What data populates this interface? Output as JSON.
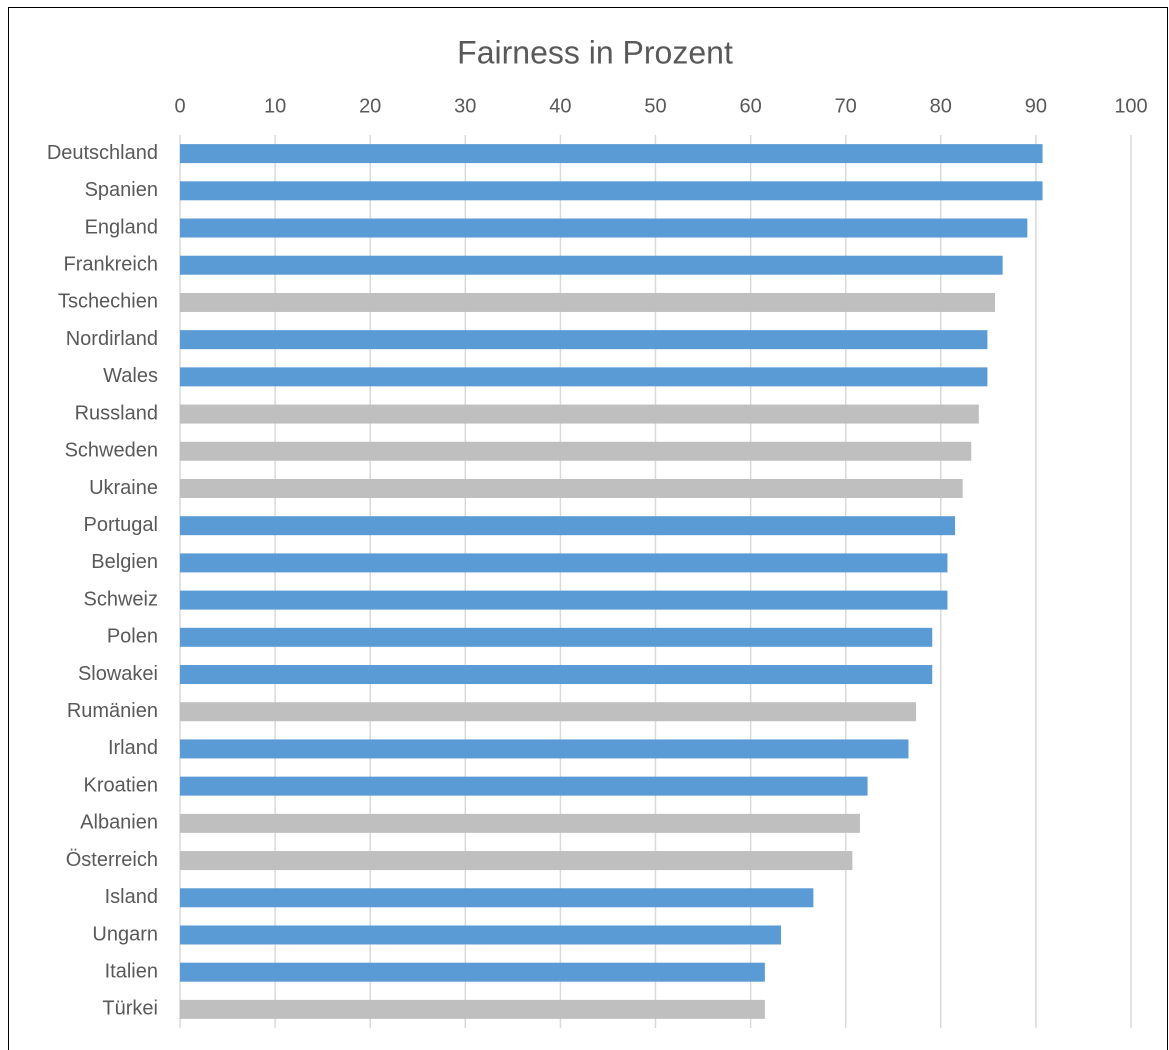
{
  "chart_data": {
    "type": "barh",
    "title": "Fairness in Prozent",
    "categories": [
      "Deutschland",
      "Spanien",
      "England",
      "Frankreich",
      "Tschechien",
      "Nordirland",
      "Wales",
      "Russland",
      "Schweden",
      "Ukraine",
      "Portugal",
      "Belgien",
      "Schweiz",
      "Polen",
      "Slowakei",
      "Rumänien",
      "Irland",
      "Kroatien",
      "Albanien",
      "Österreich",
      "Island",
      "Ungarn",
      "Italien",
      "Türkei"
    ],
    "values": [
      90.7,
      90.7,
      89.1,
      86.5,
      85.7,
      84.9,
      84.9,
      84.0,
      83.2,
      82.3,
      81.5,
      80.7,
      80.7,
      79.1,
      79.1,
      77.4,
      76.6,
      72.3,
      71.5,
      70.7,
      66.6,
      63.2,
      61.5,
      61.5
    ],
    "colors": [
      "#5b9bd5",
      "#5b9bd5",
      "#5b9bd5",
      "#5b9bd5",
      "#bfbfbf",
      "#5b9bd5",
      "#5b9bd5",
      "#bfbfbf",
      "#bfbfbf",
      "#bfbfbf",
      "#5b9bd5",
      "#5b9bd5",
      "#5b9bd5",
      "#5b9bd5",
      "#5b9bd5",
      "#bfbfbf",
      "#5b9bd5",
      "#5b9bd5",
      "#bfbfbf",
      "#bfbfbf",
      "#5b9bd5",
      "#5b9bd5",
      "#5b9bd5",
      "#bfbfbf"
    ],
    "xlim": [
      0,
      100
    ],
    "xticks": [
      0,
      10,
      20,
      30,
      40,
      50,
      60,
      70,
      80,
      90,
      100
    ],
    "grid": true
  }
}
